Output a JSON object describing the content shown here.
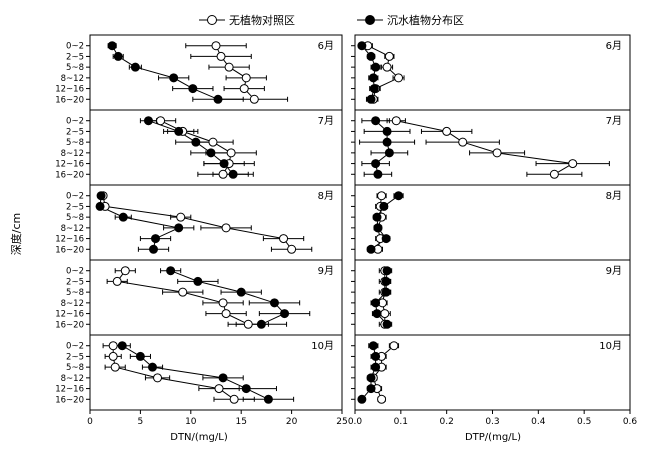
{
  "legend": {
    "entries": [
      {
        "label": "无植物对照区",
        "marker": "open-circle"
      },
      {
        "label": "沉水植物分布区",
        "marker": "filled-circle"
      }
    ],
    "placement": "top"
  },
  "y_axis_label": "深度/cm",
  "depth_labels": [
    "0~2",
    "2~5",
    "5~8",
    "8~12",
    "12~16",
    "16~20"
  ],
  "colors": {
    "axis": "#000000",
    "open_fill": "#ffffff",
    "filled_fill": "#000000"
  },
  "chart_data": [
    {
      "type": "line",
      "panel": "DTN",
      "xlabel": "DTN/(mg/L)",
      "xlim": [
        0,
        25
      ],
      "xticks": [
        0,
        5,
        10,
        15,
        20,
        25
      ],
      "months": [
        {
          "label": "6月",
          "series": [
            {
              "name": "无植物对照区",
              "values": [
                12.5,
                13.0,
                13.8,
                15.5,
                15.3,
                16.3
              ],
              "errors": [
                3.0,
                3.0,
                2.0,
                2.0,
                2.0,
                3.3
              ]
            },
            {
              "name": "沉水植物分布区",
              "values": [
                2.2,
                2.8,
                4.5,
                8.3,
                10.2,
                12.7
              ],
              "errors": [
                0.4,
                0.5,
                0.6,
                1.5,
                2.0,
                2.5
              ]
            }
          ]
        },
        {
          "label": "7月",
          "series": [
            {
              "name": "无植物对照区",
              "values": [
                7.0,
                9.2,
                12.2,
                14.0,
                13.8,
                13.2
              ],
              "errors": [
                1.5,
                1.5,
                2.0,
                2.5,
                2.5,
                2.5
              ]
            },
            {
              "name": "沉水植物分布区",
              "values": [
                5.8,
                8.8,
                10.5,
                12.0,
                13.3,
                14.2
              ],
              "errors": [
                0.8,
                1.5,
                2.0,
                2.0,
                2.0,
                2.0
              ]
            }
          ]
        },
        {
          "label": "8月",
          "series": [
            {
              "name": "无植物对照区",
              "values": [
                1.3,
                1.5,
                9.0,
                13.5,
                19.2,
                20.0
              ],
              "errors": [
                0.2,
                0.2,
                1.0,
                2.5,
                2.0,
                2.0
              ]
            },
            {
              "name": "沉水植物分布区",
              "values": [
                1.1,
                1.0,
                3.3,
                8.8,
                6.5,
                6.3
              ],
              "errors": [
                0.2,
                0.2,
                0.8,
                1.5,
                1.5,
                1.5
              ]
            }
          ]
        },
        {
          "label": "9月",
          "series": [
            {
              "name": "无植物对照区",
              "values": [
                3.5,
                2.7,
                9.2,
                13.2,
                13.5,
                15.7
              ],
              "errors": [
                1.0,
                1.0,
                2.0,
                2.0,
                2.0,
                2.0
              ]
            },
            {
              "name": "沉水植物分布区",
              "values": [
                8.0,
                10.7,
                15.0,
                18.3,
                19.3,
                17.0
              ],
              "errors": [
                1.0,
                2.0,
                2.0,
                2.5,
                2.5,
                2.5
              ]
            }
          ]
        },
        {
          "label": "10月",
          "series": [
            {
              "name": "无植物对照区",
              "values": [
                2.3,
                2.3,
                2.5,
                6.7,
                12.8,
                14.3
              ],
              "errors": [
                1.0,
                0.8,
                1.0,
                1.2,
                2.0,
                2.0
              ]
            },
            {
              "name": "沉水植物分布区",
              "values": [
                3.2,
                5.0,
                6.2,
                13.2,
                15.5,
                17.7
              ],
              "errors": [
                0.8,
                1.0,
                1.0,
                2.0,
                3.0,
                2.5
              ]
            }
          ]
        }
      ]
    },
    {
      "type": "line",
      "panel": "DTP",
      "xlabel": "DTP/(mg/L)",
      "xlim": [
        0,
        0.6
      ],
      "xticks": [
        0,
        0.1,
        0.2,
        0.3,
        0.4,
        0.5,
        0.6
      ],
      "months": [
        {
          "label": "6月",
          "series": [
            {
              "name": "无植物对照区",
              "values": [
                0.028,
                0.075,
                0.07,
                0.095,
                0.045,
                0.04
              ],
              "errors": [
                0.01,
                0.01,
                0.012,
                0.012,
                0.01,
                0.01
              ]
            },
            {
              "name": "沉水植物分布区",
              "values": [
                0.015,
                0.035,
                0.045,
                0.04,
                0.042,
                0.035
              ],
              "errors": [
                0.005,
                0.008,
                0.01,
                0.01,
                0.01,
                0.01
              ]
            }
          ]
        },
        {
          "label": "7月",
          "series": [
            {
              "name": "无植物对照区",
              "values": [
                0.09,
                0.2,
                0.235,
                0.31,
                0.475,
                0.435
              ],
              "errors": [
                0.02,
                0.055,
                0.08,
                0.06,
                0.08,
                0.06
              ]
            },
            {
              "name": "沉水植物分布区",
              "values": [
                0.045,
                0.07,
                0.07,
                0.075,
                0.045,
                0.05
              ],
              "errors": [
                0.03,
                0.05,
                0.06,
                0.04,
                0.03,
                0.03
              ]
            }
          ]
        },
        {
          "label": "8月",
          "series": [
            {
              "name": "无植物对照区",
              "values": [
                0.058,
                0.055,
                0.058,
                0.05,
                0.055,
                0.05
              ],
              "errors": [
                0.01,
                0.01,
                0.01,
                0.008,
                0.01,
                0.01
              ]
            },
            {
              "name": "沉水植物分布区",
              "values": [
                0.095,
                0.063,
                0.048,
                0.05,
                0.068,
                0.035
              ],
              "errors": [
                0.01,
                0.008,
                0.008,
                0.008,
                0.008,
                0.008
              ]
            }
          ]
        },
        {
          "label": "9月",
          "series": [
            {
              "name": "无植物对照区",
              "values": [
                0.065,
                0.065,
                0.065,
                0.06,
                0.065,
                0.065
              ],
              "errors": [
                0.012,
                0.012,
                0.012,
                0.01,
                0.012,
                0.012
              ]
            },
            {
              "name": "沉水植物分布区",
              "values": [
                0.07,
                0.068,
                0.068,
                0.045,
                0.048,
                0.07
              ],
              "errors": [
                0.01,
                0.01,
                0.01,
                0.01,
                0.01,
                0.01
              ]
            }
          ]
        },
        {
          "label": "10月",
          "series": [
            {
              "name": "无植物对照区",
              "values": [
                0.085,
                0.058,
                0.058,
                0.04,
                0.048,
                0.058
              ],
              "errors": [
                0.01,
                0.01,
                0.01,
                0.008,
                0.01,
                0.008
              ]
            },
            {
              "name": "沉水植物分布区",
              "values": [
                0.04,
                0.045,
                0.045,
                0.035,
                0.035,
                0.015
              ],
              "errors": [
                0.01,
                0.01,
                0.01,
                0.008,
                0.008,
                0.005
              ]
            }
          ]
        }
      ]
    }
  ]
}
